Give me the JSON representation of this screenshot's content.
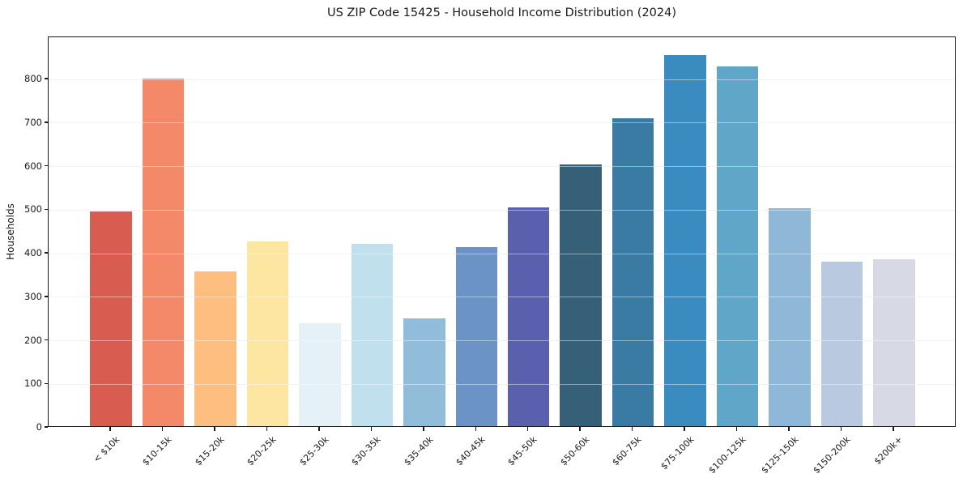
{
  "chart_data": {
    "type": "bar",
    "title": "US ZIP Code 15425 - Household Income Distribution (2024)",
    "xlabel": "",
    "ylabel": "Households",
    "categories": [
      "< $10k",
      "$10-15k",
      "$15-20k",
      "$20-25k",
      "$25-30k",
      "$30-35k",
      "$35-40k",
      "$40-45k",
      "$45-50k",
      "$50-60k",
      "$60-75k",
      "$75-100k",
      "$100-125k",
      "$125-150k",
      "$150-200k",
      "$200k+"
    ],
    "values": [
      494,
      798,
      355,
      424,
      236,
      418,
      247,
      411,
      503,
      602,
      707,
      853,
      826,
      500,
      377,
      383
    ],
    "bar_colors": [
      "#d85c50",
      "#f4896a",
      "#fdbe7f",
      "#fde5a2",
      "#e5f1f7",
      "#bfe0ec",
      "#92bdda",
      "#6b93c5",
      "#5a5fae",
      "#365f78",
      "#397ba3",
      "#3a8bbf",
      "#5fa6c9",
      "#8fb8d8",
      "#b9c9df",
      "#d7d9e5"
    ],
    "yticks": [
      0,
      100,
      200,
      300,
      400,
      500,
      600,
      700,
      800
    ],
    "ylim": [
      0,
      897
    ],
    "grid": "horizontal",
    "legend": "none",
    "colors": {
      "background": "#ffffff",
      "spine": "#1a1a1a",
      "gridline": "#e9e9e9",
      "text": "#1a1a1a"
    }
  }
}
